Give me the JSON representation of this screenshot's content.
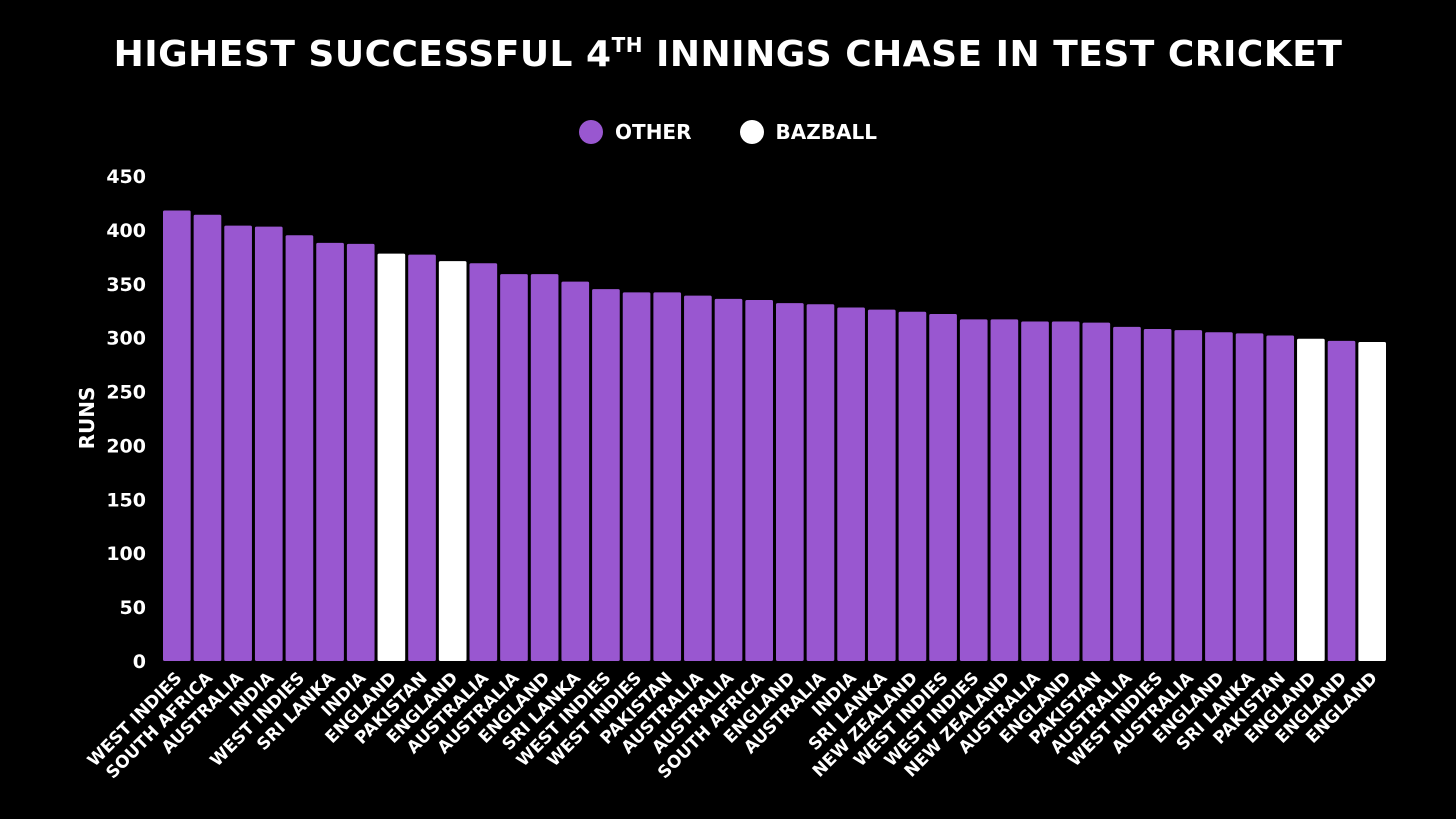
{
  "colors": {
    "background": "#000000",
    "other": "#9957d0",
    "bazball": "#ffffff",
    "text": "#ffffff"
  },
  "chart_data": {
    "type": "bar",
    "title_main": "HIGHEST SUCCESSFUL 4",
    "title_sup": "TH",
    "title_rest": " INNINGS CHASE IN TEST CRICKET",
    "ylabel": "RUNS",
    "xlabel": "",
    "ylim": [
      0,
      450
    ],
    "yticks": [
      0,
      50,
      100,
      150,
      200,
      250,
      300,
      350,
      400,
      450
    ],
    "grid": false,
    "legend_position": "top-center",
    "legend": [
      {
        "name": "OTHER",
        "color_key": "other"
      },
      {
        "name": "BAZBALL",
        "color_key": "bazball"
      }
    ],
    "categories": [
      "WEST INDIES",
      "SOUTH AFRICA",
      "AUSTRALIA",
      "INDIA",
      "WEST INDIES",
      "SRI LANKA",
      "INDIA",
      "ENGLAND",
      "PAKISTAN",
      "ENGLAND",
      "AUSTRALIA",
      "AUSTRALIA",
      "ENGLAND",
      "SRI LANKA",
      "WEST INDIES",
      "WEST INDIES",
      "PAKISTAN",
      "AUSTRALIA",
      "AUSTRALIA",
      "SOUTH AFRICA",
      "ENGLAND",
      "AUSTRALIA",
      "INDIA",
      "SRI LANKA",
      "NEW ZEALAND",
      "WEST INDIES",
      "WEST INDIES",
      "NEW ZEALAND",
      "AUSTRALIA",
      "ENGLAND",
      "PAKISTAN",
      "AUSTRALIA",
      "WEST INDIES",
      "AUSTRALIA",
      "ENGLAND",
      "SRI LANKA",
      "PAKISTAN",
      "ENGLAND",
      "ENGLAND",
      "ENGLAND"
    ],
    "values": [
      418,
      414,
      404,
      403,
      395,
      388,
      387,
      378,
      377,
      371,
      369,
      359,
      359,
      352,
      345,
      342,
      342,
      339,
      336,
      335,
      332,
      331,
      328,
      326,
      324,
      322,
      317,
      317,
      315,
      315,
      314,
      310,
      308,
      307,
      305,
      304,
      302,
      299,
      297,
      296
    ],
    "groups": [
      "other",
      "other",
      "other",
      "other",
      "other",
      "other",
      "other",
      "bazball",
      "other",
      "bazball",
      "other",
      "other",
      "other",
      "other",
      "other",
      "other",
      "other",
      "other",
      "other",
      "other",
      "other",
      "other",
      "other",
      "other",
      "other",
      "other",
      "other",
      "other",
      "other",
      "other",
      "other",
      "other",
      "other",
      "other",
      "other",
      "other",
      "other",
      "bazball",
      "other",
      "bazball"
    ]
  }
}
